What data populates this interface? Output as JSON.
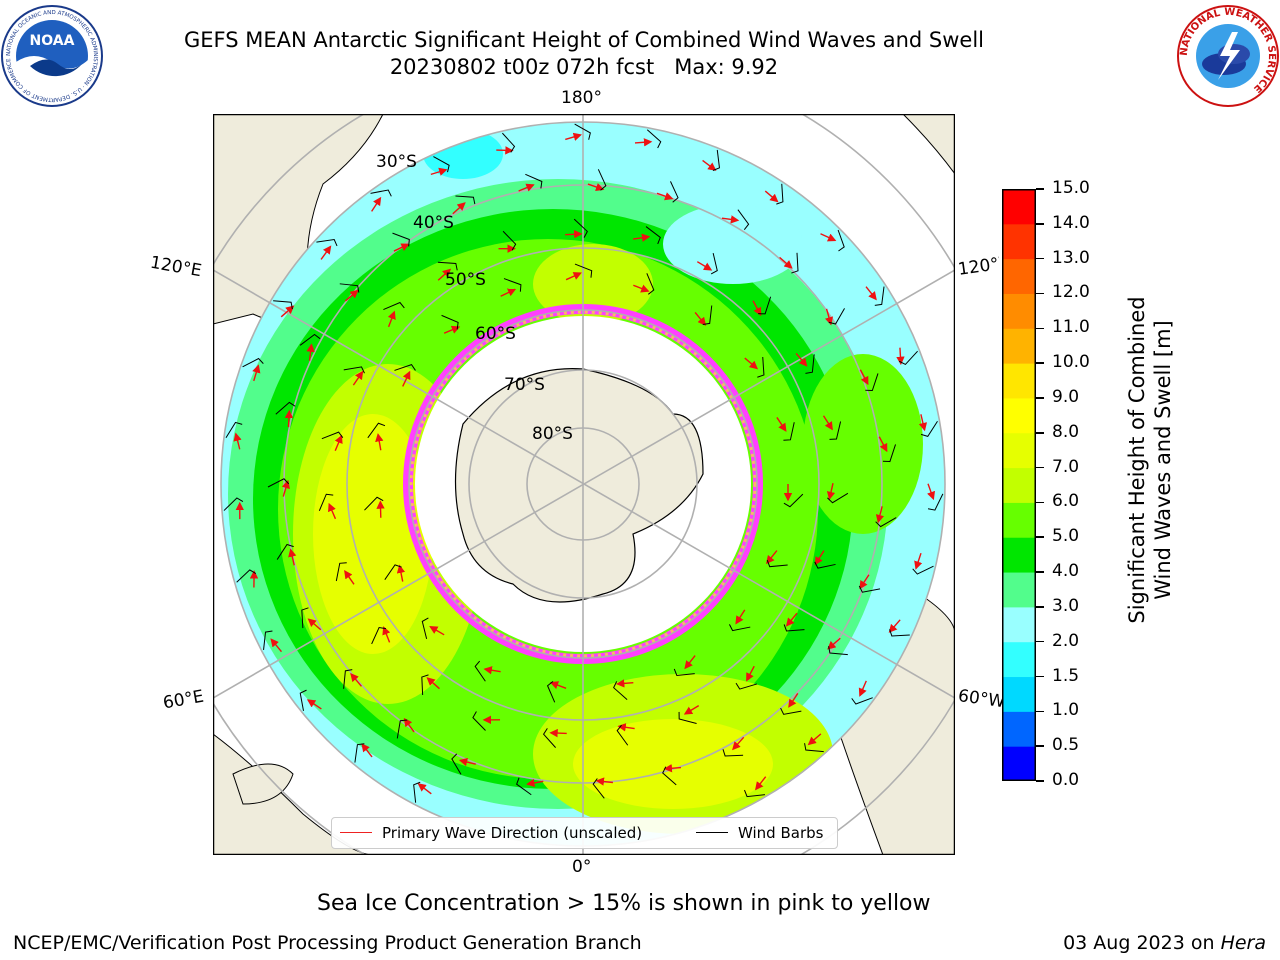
{
  "title": {
    "line1": "GEFS MEAN Antarctic Significant Height of Combined Wind Waves and Swell",
    "line2": "20230802 t00z 072h fcst   Max: 9.92"
  },
  "logos": {
    "left": {
      "text": "NOAA",
      "ring_text": "NATIONAL OCEANIC AND ATMOSPHERIC ADMINISTRATION · U.S. DEPARTMENT OF COMMERCE",
      "icon": "noaa-logo-icon"
    },
    "right": {
      "ring_text": "NATIONAL WEATHER SERVICE",
      "icon": "nws-logo-icon"
    }
  },
  "map": {
    "longitude_labels": {
      "top": "180°",
      "bottom": "0°",
      "upper_left": "120°E",
      "upper_right": "120°W",
      "lower_left": "60°E",
      "lower_right": "60°W"
    },
    "latitude_labels": [
      "30°S",
      "40°S",
      "50°S",
      "60°S",
      "70°S",
      "80°S"
    ],
    "colors": {
      "land": "#efecdc",
      "ice": "#ffffff",
      "grid": "#b0b0b0",
      "arrow": "#ee1111",
      "barb": "#000000",
      "ice_edge": "#ff40ff"
    }
  },
  "legend": {
    "primary_wave": "Primary Wave Direction (unscaled)",
    "wind_barbs": "Wind Barbs",
    "primary_color": "#ee2222",
    "barb_color": "#000000"
  },
  "colorbar": {
    "label_line1": "Significant Height of Combined",
    "label_line2": "Wind Waves and Swell [m]",
    "ticks": [
      "0.0",
      "0.5",
      "1.0",
      "1.5",
      "2.0",
      "3.0",
      "4.0",
      "5.0",
      "6.0",
      "7.0",
      "8.0",
      "9.0",
      "10.0",
      "11.0",
      "12.0",
      "13.0",
      "14.0",
      "15.0"
    ],
    "colors": [
      "#0000ff",
      "#0066ff",
      "#00d9ff",
      "#33ffff",
      "#99ffff",
      "#52fd8c",
      "#00e600",
      "#66ff00",
      "#c2ff00",
      "#e6ff00",
      "#ffff00",
      "#ffe600",
      "#ffb300",
      "#ff8c00",
      "#ff6600",
      "#ff3300",
      "#ff0000"
    ]
  },
  "note": "Sea Ice Concentration > 15% is shown in pink to yellow",
  "footer": {
    "left": "NCEP/EMC/Verification Post Processing Product Generation Branch",
    "right_prefix": "03 Aug 2023 on ",
    "right_host": "Hera"
  }
}
